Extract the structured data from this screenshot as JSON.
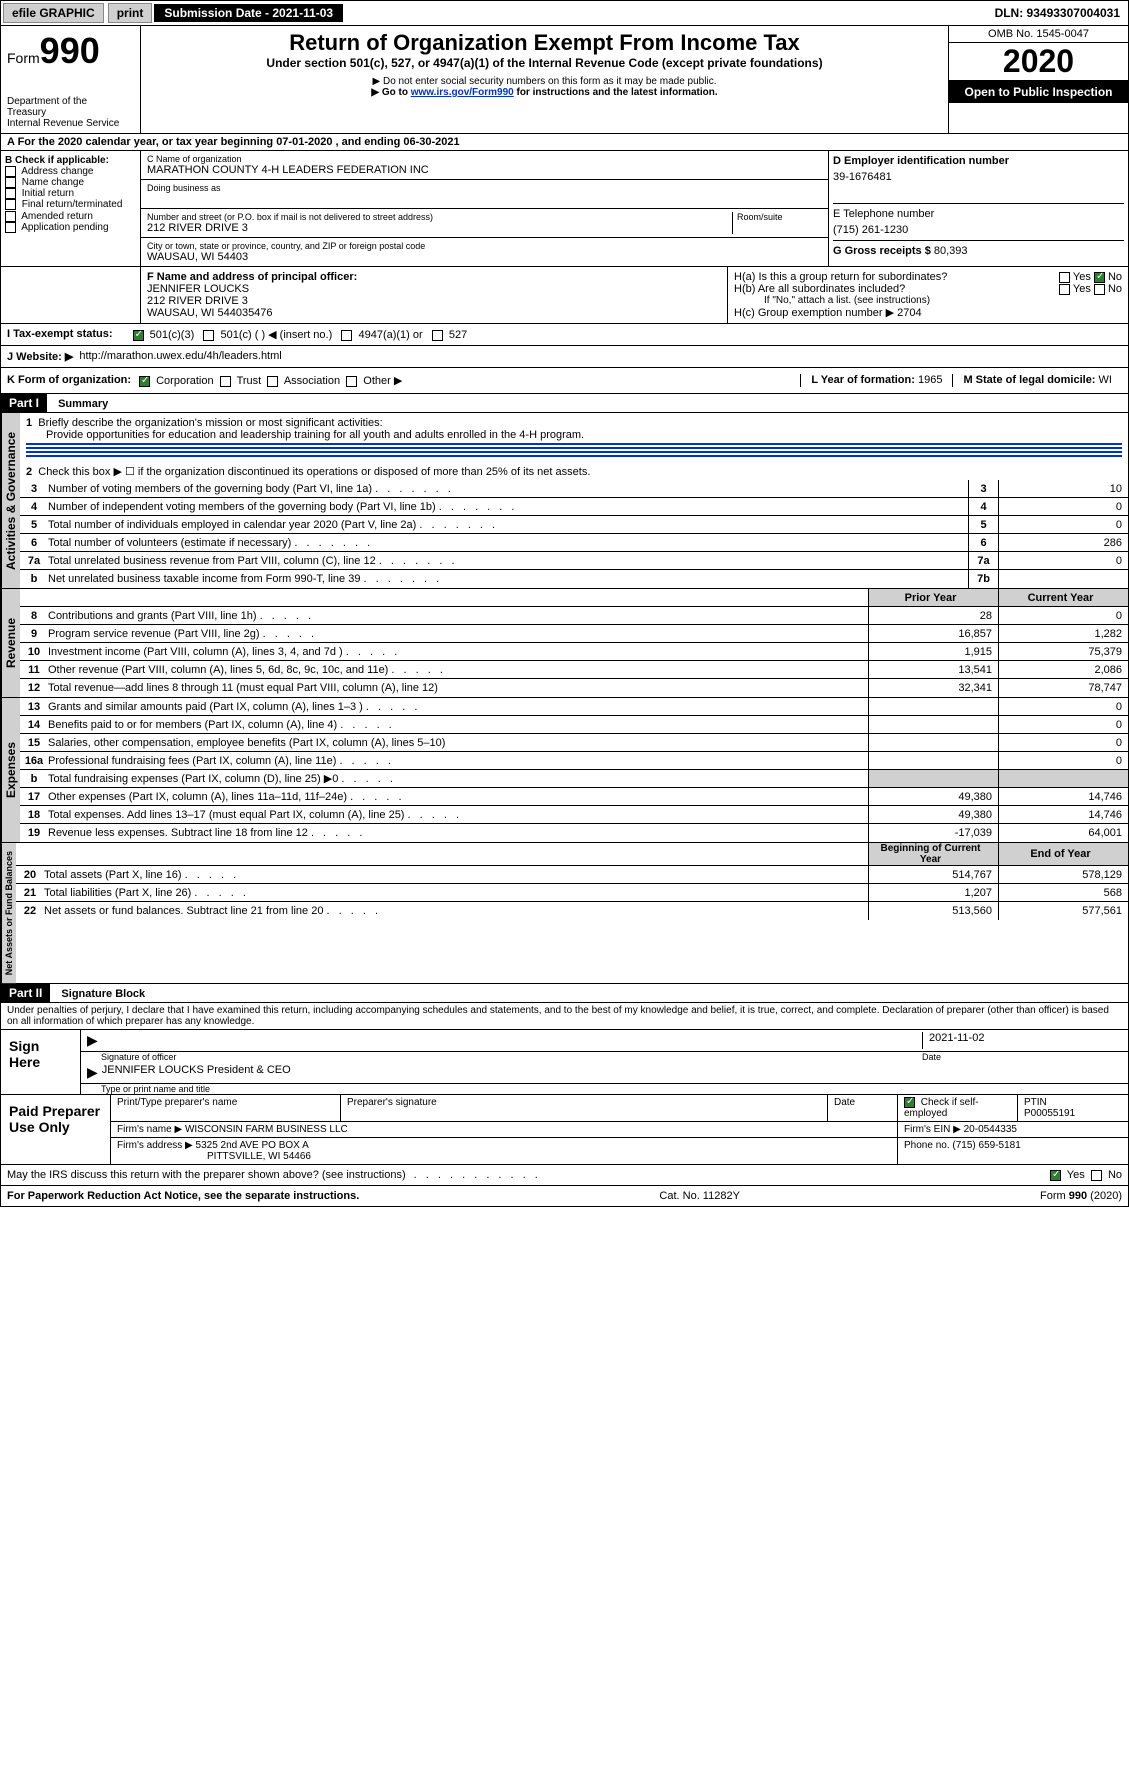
{
  "topbar": {
    "efile": "efile GRAPHIC",
    "print": "print",
    "subdate_label": "Submission Date - 2021-11-03",
    "dln": "DLN: 93493307004031"
  },
  "header": {
    "form_word": "Form",
    "form_num": "990",
    "dept1": "Department of the",
    "dept2": "Treasury",
    "dept3": "Internal Revenue Service",
    "title": "Return of Organization Exempt From Income Tax",
    "subtitle": "Under section 501(c), 527, or 4947(a)(1) of the Internal Revenue Code (except private foundations)",
    "note1": "▶ Do not enter social security numbers on this form as it may be made public.",
    "note2_pre": "▶ Go to ",
    "note2_link": "www.irs.gov/Form990",
    "note2_post": " for instructions and the latest information.",
    "omb": "OMB No. 1545-0047",
    "year": "2020",
    "inspect": "Open to Public Inspection"
  },
  "periodA": "A For the 2020 calendar year, or tax year beginning 07-01-2020    , and ending 06-30-2021",
  "boxB": {
    "label": "B Check if applicable:",
    "items": [
      "Address change",
      "Name change",
      "Initial return",
      "Final return/terminated",
      "Amended return",
      "Application pending"
    ]
  },
  "boxC": {
    "name_label": "C Name of organization",
    "name": "MARATHON COUNTY 4-H LEADERS FEDERATION INC",
    "dba_label": "Doing business as",
    "addr_label": "Number and street (or P.O. box if mail is not delivered to street address)",
    "room_label": "Room/suite",
    "addr": "212 RIVER DRIVE 3",
    "city_label": "City or town, state or province, country, and ZIP or foreign postal code",
    "city": "WAUSAU, WI  54403"
  },
  "boxD": {
    "label": "D Employer identification number",
    "val": "39-1676481"
  },
  "boxE": {
    "label": "E Telephone number",
    "val": "(715) 261-1230"
  },
  "boxG": {
    "label": "G Gross receipts $",
    "val": "80,393"
  },
  "boxF": {
    "label": "F  Name and address of principal officer:",
    "name": "JENNIFER LOUCKS",
    "addr1": "212 RIVER DRIVE 3",
    "addr2": "WAUSAU, WI  544035476"
  },
  "boxH": {
    "a": "H(a)  Is this a group return for subordinates?",
    "b": "H(b)  Are all subordinates included?",
    "bnote": "If \"No,\" attach a list. (see instructions)",
    "c": "H(c)  Group exemption number ▶   2704"
  },
  "boxI": {
    "label": "I   Tax-exempt status:",
    "opts": [
      "501(c)(3)",
      "501(c) (   ) ◀ (insert no.)",
      "4947(a)(1) or",
      "527"
    ]
  },
  "boxJ": {
    "label": "J   Website: ▶",
    "val": "http://marathon.uwex.edu/4h/leaders.html"
  },
  "boxK": {
    "label": "K Form of organization:",
    "opts": [
      "Corporation",
      "Trust",
      "Association",
      "Other ▶"
    ]
  },
  "boxL": {
    "label": "L Year of formation:",
    "val": "1965"
  },
  "boxM": {
    "label": "M State of legal domicile:",
    "val": "WI"
  },
  "part1": {
    "bar": "Part I",
    "title": "Summary",
    "line1": "Briefly describe the organization's mission or most significant activities:",
    "mission": "Provide opportunities for education and leadership training for all youth and adults enrolled in the 4-H program.",
    "line2": "Check this box ▶ ☐  if the organization discontinued its operations or disposed of more than 25% of its net assets.",
    "lines_gov": [
      {
        "n": "3",
        "t": "Number of voting members of the governing body (Part VI, line 1a)",
        "b": "3",
        "v": "10"
      },
      {
        "n": "4",
        "t": "Number of independent voting members of the governing body (Part VI, line 1b)",
        "b": "4",
        "v": "0"
      },
      {
        "n": "5",
        "t": "Total number of individuals employed in calendar year 2020 (Part V, line 2a)",
        "b": "5",
        "v": "0"
      },
      {
        "n": "6",
        "t": "Total number of volunteers (estimate if necessary)",
        "b": "6",
        "v": "286"
      },
      {
        "n": "7a",
        "t": "Total unrelated business revenue from Part VIII, column (C), line 12",
        "b": "7a",
        "v": "0"
      },
      {
        "n": "b",
        "t": "Net unrelated business taxable income from Form 990-T, line 39",
        "b": "7b",
        "v": ""
      }
    ],
    "hdr_prior": "Prior Year",
    "hdr_curr": "Current Year",
    "lines_rev": [
      {
        "n": "8",
        "t": "Contributions and grants (Part VIII, line 1h)",
        "p": "28",
        "c": "0"
      },
      {
        "n": "9",
        "t": "Program service revenue (Part VIII, line 2g)",
        "p": "16,857",
        "c": "1,282"
      },
      {
        "n": "10",
        "t": "Investment income (Part VIII, column (A), lines 3, 4, and 7d )",
        "p": "1,915",
        "c": "75,379"
      },
      {
        "n": "11",
        "t": "Other revenue (Part VIII, column (A), lines 5, 6d, 8c, 9c, 10c, and 11e)",
        "p": "13,541",
        "c": "2,086"
      },
      {
        "n": "12",
        "t": "Total revenue—add lines 8 through 11 (must equal Part VIII, column (A), line 12)",
        "p": "32,341",
        "c": "78,747"
      }
    ],
    "lines_exp": [
      {
        "n": "13",
        "t": "Grants and similar amounts paid (Part IX, column (A), lines 1–3 )",
        "p": "",
        "c": "0"
      },
      {
        "n": "14",
        "t": "Benefits paid to or for members (Part IX, column (A), line 4)",
        "p": "",
        "c": "0"
      },
      {
        "n": "15",
        "t": "Salaries, other compensation, employee benefits (Part IX, column (A), lines 5–10)",
        "p": "",
        "c": "0"
      },
      {
        "n": "16a",
        "t": "Professional fundraising fees (Part IX, column (A), line 11e)",
        "p": "",
        "c": "0"
      },
      {
        "n": "b",
        "t": "Total fundraising expenses (Part IX, column (D), line 25) ▶0",
        "p": "SHADE",
        "c": "SHADE"
      },
      {
        "n": "17",
        "t": "Other expenses (Part IX, column (A), lines 11a–11d, 11f–24e)",
        "p": "49,380",
        "c": "14,746"
      },
      {
        "n": "18",
        "t": "Total expenses. Add lines 13–17 (must equal Part IX, column (A), line 25)",
        "p": "49,380",
        "c": "14,746"
      },
      {
        "n": "19",
        "t": "Revenue less expenses. Subtract line 18 from line 12",
        "p": "-17,039",
        "c": "64,001"
      }
    ],
    "hdr_beg": "Beginning of Current Year",
    "hdr_end": "End of Year",
    "lines_net": [
      {
        "n": "20",
        "t": "Total assets (Part X, line 16)",
        "p": "514,767",
        "c": "578,129"
      },
      {
        "n": "21",
        "t": "Total liabilities (Part X, line 26)",
        "p": "1,207",
        "c": "568"
      },
      {
        "n": "22",
        "t": "Net assets or fund balances. Subtract line 21 from line 20",
        "p": "513,560",
        "c": "577,561"
      }
    ],
    "vtabs": [
      "Activities & Governance",
      "Revenue",
      "Expenses",
      "Net Assets or Fund Balances"
    ]
  },
  "part2": {
    "bar": "Part II",
    "title": "Signature Block",
    "decl": "Under penalties of perjury, I declare that I have examined this return, including accompanying schedules and statements, and to the best of my knowledge and belief, it is true, correct, and complete. Declaration of preparer (other than officer) is based on all information of which preparer has any knowledge.",
    "sign_here": "Sign Here",
    "sig_officer": "Signature of officer",
    "date_label": "Date",
    "date_val": "2021-11-02",
    "officer_name": "JENNIFER LOUCKS  President & CEO",
    "type_label": "Type or print name and title",
    "paid": "Paid Preparer Use Only",
    "prep_name_label": "Print/Type preparer's name",
    "prep_sig_label": "Preparer's signature",
    "prep_date_label": "Date",
    "check_if": "Check ☑ if self-employed",
    "ptin_label": "PTIN",
    "ptin": "P00055191",
    "firm_name_label": "Firm's name    ▶",
    "firm_name": "WISCONSIN FARM BUSINESS LLC",
    "firm_ein_label": "Firm's EIN ▶",
    "firm_ein": "20-0544335",
    "firm_addr_label": "Firm's address ▶",
    "firm_addr1": "5325 2nd AVE PO BOX A",
    "firm_addr2": "PITTSVILLE, WI  54466",
    "phone_label": "Phone no.",
    "phone": "(715) 659-5181",
    "discuss": "May the IRS discuss this return with the preparer shown above? (see instructions)",
    "yes": "Yes",
    "no": "No"
  },
  "footer": {
    "pra": "For Paperwork Reduction Act Notice, see the separate instructions.",
    "cat": "Cat. No. 11282Y",
    "form": "Form 990 (2020)"
  }
}
